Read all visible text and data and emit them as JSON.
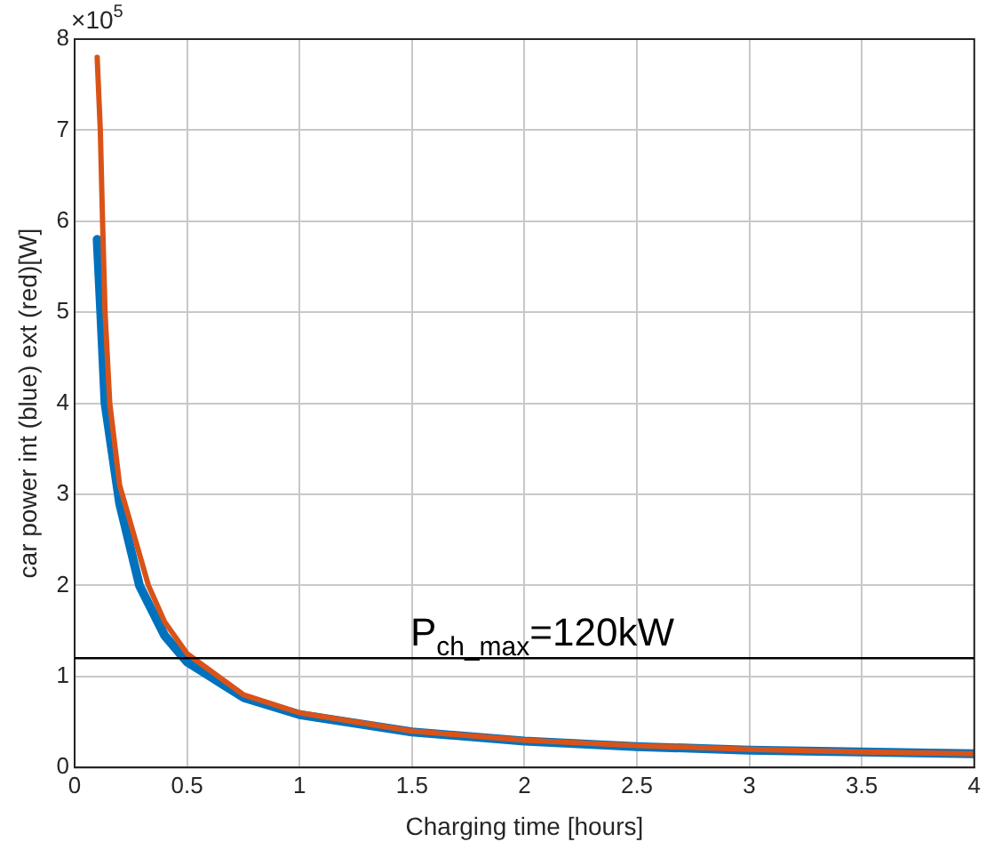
{
  "chart_data": {
    "type": "line",
    "xlabel": "Charging time [hours]",
    "ylabel": "car power int (blue) ext (red)[W]",
    "annotations": [
      "×10$^{5}$"
    ],
    "xlim": [
      0,
      4
    ],
    "xticks": [
      0,
      0.5,
      1,
      1.5,
      2,
      2.5,
      3,
      3.5,
      4
    ],
    "ylim": [
      0,
      8
    ],
    "yticks": [
      0,
      1,
      2,
      3,
      4,
      5,
      6,
      7,
      8
    ],
    "grid": true,
    "legend": false,
    "marker": "none",
    "ref_lines": [
      {
        "axis": "y",
        "value": 1.2,
        "label": "P$_{ch_max}$=120kW",
        "color": "#000000"
      }
    ],
    "series": [
      {
        "color": "#0072bd",
        "x": [
          0.1,
          0.116,
          0.135,
          0.2,
          0.288,
          0.4,
          0.5,
          0.75,
          1,
          1.5,
          2,
          2.5,
          3,
          3.5,
          4
        ],
        "values": [
          5.8,
          5,
          4,
          2.9,
          2,
          1.45,
          1.16,
          0.77,
          0.58,
          0.39,
          0.29,
          0.23,
          0.19,
          0.17,
          0.15
        ]
      },
      {
        "color": "#d95319",
        "x": [
          0.1,
          0.114,
          0.124,
          0.135,
          0.156,
          0.2,
          0.328,
          0.4,
          0.5,
          0.75,
          1,
          1.5,
          2,
          2.5,
          3,
          3.5,
          4
        ],
        "values": [
          7.8,
          7,
          6,
          5,
          4,
          3.1,
          2,
          1.6,
          1.25,
          0.8,
          0.6,
          0.4,
          0.3,
          0.24,
          0.2,
          0.17,
          0.15
        ]
      }
    ]
  }
}
